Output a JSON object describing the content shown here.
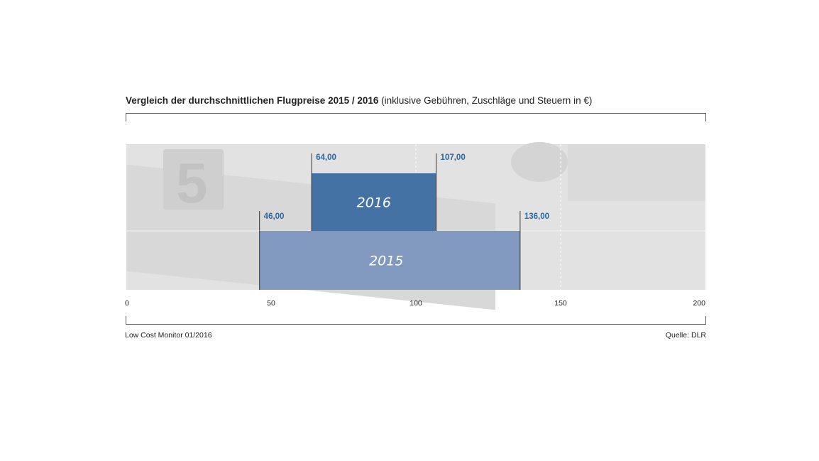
{
  "title": {
    "main": "Vergleich der durchschnittlichen Flugpreise 2015 / 2016",
    "sub": "(inklusive Gebühren, Zuschläge und Steuern in €)"
  },
  "footer": {
    "left": "Low Cost Monitor 01/2016",
    "right": "Quelle: DLR"
  },
  "colors": {
    "bar_2016": "#4472a4",
    "bar_2015": "#8199bf",
    "value_label": "#2a67a0",
    "background": "#e2e2e2"
  },
  "chart_data": {
    "type": "bar",
    "orientation": "horizontal-range",
    "series": [
      {
        "name": "2016",
        "start": 64.0,
        "end": 107.0,
        "start_label": "64,00",
        "end_label": "107,00"
      },
      {
        "name": "2015",
        "start": 46.0,
        "end": 136.0,
        "start_label": "46,00",
        "end_label": "136,00"
      }
    ],
    "xlim": [
      0,
      200
    ],
    "xticks": [
      0,
      50,
      100,
      150,
      200
    ],
    "xtick_labels": [
      "0",
      "50",
      "100",
      "150",
      "200"
    ],
    "grid": "dashed vertical lines at 100 and 150",
    "background_image": "faded photo of 5 euro banknote and coin"
  }
}
